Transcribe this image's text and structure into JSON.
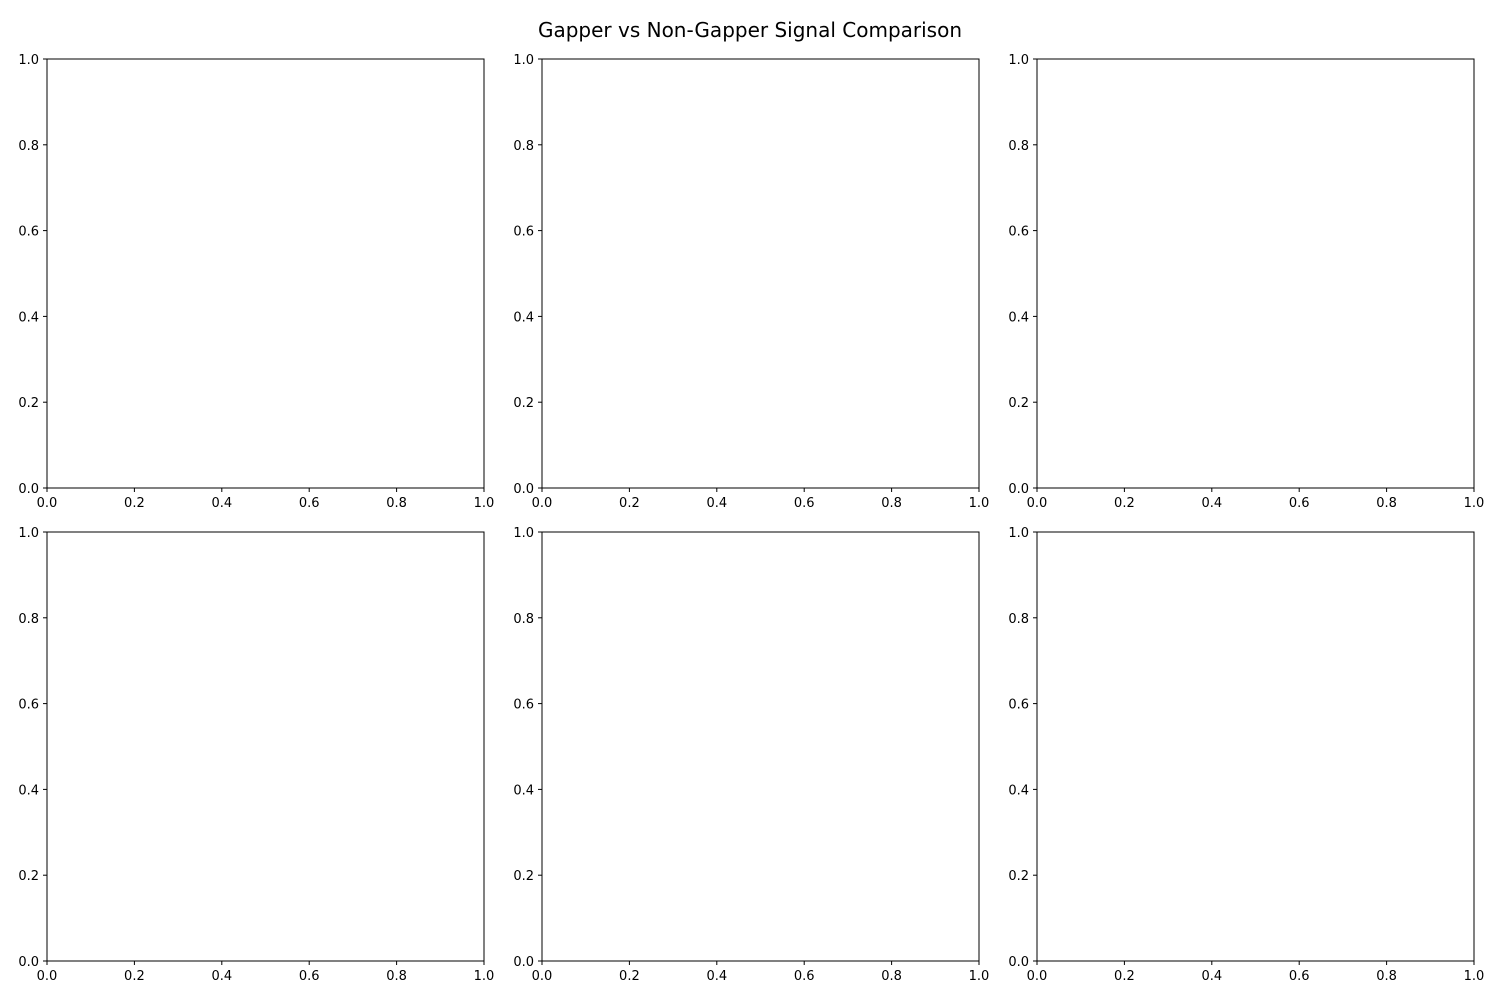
{
  "figure": {
    "title": "Gapper vs Non-Gapper Signal Comparison"
  },
  "chart_data": [
    {
      "type": "line",
      "title": "",
      "xlabel": "",
      "ylabel": "",
      "xlim": [
        0,
        1
      ],
      "ylim": [
        0,
        1
      ],
      "xticks": [
        "0.0",
        "0.2",
        "0.4",
        "0.6",
        "0.8",
        "1.0"
      ],
      "yticks": [
        "0.0",
        "0.2",
        "0.4",
        "0.6",
        "0.8",
        "1.0"
      ],
      "series": [],
      "grid": false
    },
    {
      "type": "line",
      "title": "",
      "xlabel": "",
      "ylabel": "",
      "xlim": [
        0,
        1
      ],
      "ylim": [
        0,
        1
      ],
      "xticks": [
        "0.0",
        "0.2",
        "0.4",
        "0.6",
        "0.8",
        "1.0"
      ],
      "yticks": [
        "0.0",
        "0.2",
        "0.4",
        "0.6",
        "0.8",
        "1.0"
      ],
      "series": [],
      "grid": false
    },
    {
      "type": "line",
      "title": "",
      "xlabel": "",
      "ylabel": "",
      "xlim": [
        0,
        1
      ],
      "ylim": [
        0,
        1
      ],
      "xticks": [
        "0.0",
        "0.2",
        "0.4",
        "0.6",
        "0.8",
        "1.0"
      ],
      "yticks": [
        "0.0",
        "0.2",
        "0.4",
        "0.6",
        "0.8",
        "1.0"
      ],
      "series": [],
      "grid": false
    },
    {
      "type": "line",
      "title": "",
      "xlabel": "",
      "ylabel": "",
      "xlim": [
        0,
        1
      ],
      "ylim": [
        0,
        1
      ],
      "xticks": [
        "0.0",
        "0.2",
        "0.4",
        "0.6",
        "0.8",
        "1.0"
      ],
      "yticks": [
        "0.0",
        "0.2",
        "0.4",
        "0.6",
        "0.8",
        "1.0"
      ],
      "series": [],
      "grid": false
    },
    {
      "type": "line",
      "title": "",
      "xlabel": "",
      "ylabel": "",
      "xlim": [
        0,
        1
      ],
      "ylim": [
        0,
        1
      ],
      "xticks": [
        "0.0",
        "0.2",
        "0.4",
        "0.6",
        "0.8",
        "1.0"
      ],
      "yticks": [
        "0.0",
        "0.2",
        "0.4",
        "0.6",
        "0.8",
        "1.0"
      ],
      "series": [],
      "grid": false
    },
    {
      "type": "line",
      "title": "",
      "xlabel": "",
      "ylabel": "",
      "xlim": [
        0,
        1
      ],
      "ylim": [
        0,
        1
      ],
      "xticks": [
        "0.0",
        "0.2",
        "0.4",
        "0.6",
        "0.8",
        "1.0"
      ],
      "yticks": [
        "0.0",
        "0.2",
        "0.4",
        "0.6",
        "0.8",
        "1.0"
      ],
      "series": [],
      "grid": false
    }
  ]
}
